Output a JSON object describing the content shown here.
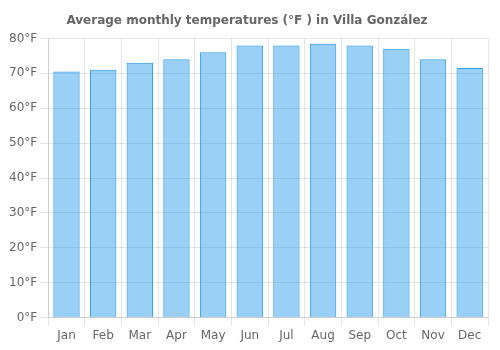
{
  "chart_data": {
    "type": "bar",
    "title": "Average monthly temperatures (°F ) in Villa González",
    "categories": [
      "Jan",
      "Feb",
      "Mar",
      "Apr",
      "May",
      "Jun",
      "Jul",
      "Aug",
      "Sep",
      "Oct",
      "Nov",
      "Dec"
    ],
    "values": [
      70.5,
      71.0,
      73.0,
      74.0,
      76.0,
      78.0,
      78.0,
      78.5,
      78.0,
      77.0,
      74.0,
      71.5
    ],
    "ylim": [
      0,
      80
    ],
    "yticks": [
      {
        "value": 0,
        "label": "0°F"
      },
      {
        "value": 10,
        "label": "10°F"
      },
      {
        "value": 20,
        "label": "20°F"
      },
      {
        "value": 30,
        "label": "30°F"
      },
      {
        "value": 40,
        "label": "40°F"
      },
      {
        "value": 50,
        "label": "50°F"
      },
      {
        "value": 60,
        "label": "60°F"
      },
      {
        "value": 70,
        "label": "70°F"
      },
      {
        "value": 80,
        "label": "80°F"
      }
    ],
    "grid": true
  }
}
